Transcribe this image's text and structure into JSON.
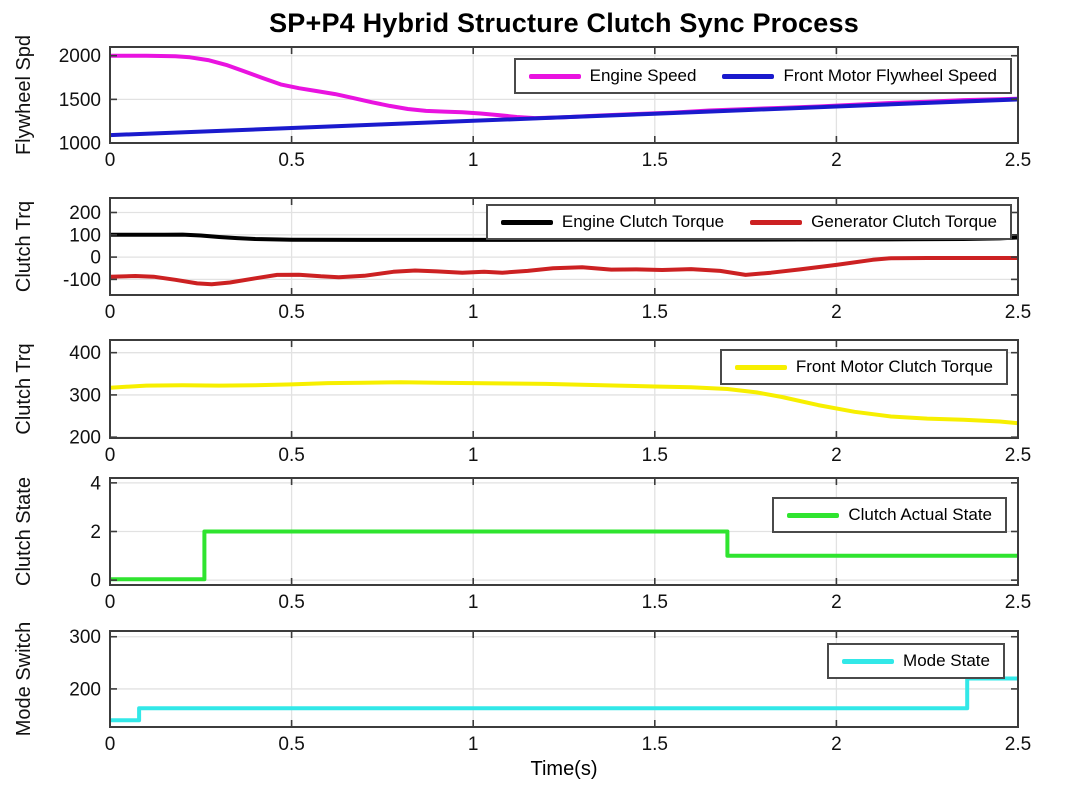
{
  "figure_title": "SP+P4 Hybrid Structure Clutch Sync Process",
  "xlabel": "Time(s)",
  "style": {
    "grid_color": "#e2e2e2",
    "axis_color": "#3c3c3c",
    "text_color": "#111111",
    "line_width": 4
  },
  "chart_data": [
    {
      "type": "line",
      "title": "SP+P4 Hybrid Structure Clutch Sync Process",
      "ylabel": "Flywheel Spd",
      "xlim": [
        0,
        2.5
      ],
      "ylim": [
        1000,
        2100
      ],
      "xticks": [
        0,
        0.5,
        1,
        1.5,
        2,
        2.5
      ],
      "xtick_labels": [
        "0",
        "0.5",
        "1",
        "1.5",
        "2",
        "2.5"
      ],
      "yticks": [
        1000,
        1500,
        2000
      ],
      "grid": true,
      "legend_position": "top-right-horizontal",
      "series": [
        {
          "name": "Engine Speed",
          "color": "#e913e0",
          "points": [
            [
              0,
              2000
            ],
            [
              0.1,
              2000
            ],
            [
              0.18,
              1995
            ],
            [
              0.22,
              1982
            ],
            [
              0.27,
              1950
            ],
            [
              0.32,
              1895
            ],
            [
              0.37,
              1820
            ],
            [
              0.42,
              1745
            ],
            [
              0.47,
              1672
            ],
            [
              0.52,
              1628
            ],
            [
              0.57,
              1595
            ],
            [
              0.62,
              1560
            ],
            [
              0.67,
              1515
            ],
            [
              0.72,
              1468
            ],
            [
              0.77,
              1425
            ],
            [
              0.82,
              1390
            ],
            [
              0.87,
              1368
            ],
            [
              0.92,
              1360
            ],
            [
              0.97,
              1352
            ],
            [
              1.02,
              1338
            ],
            [
              1.07,
              1320
            ],
            [
              1.12,
              1298
            ],
            [
              1.17,
              1285
            ],
            [
              1.25,
              1295
            ],
            [
              1.35,
              1315
            ],
            [
              1.45,
              1332
            ],
            [
              1.55,
              1348
            ],
            [
              1.65,
              1372
            ],
            [
              1.75,
              1388
            ],
            [
              1.85,
              1402
            ],
            [
              1.95,
              1418
            ],
            [
              2.05,
              1438
            ],
            [
              2.15,
              1458
            ],
            [
              2.25,
              1472
            ],
            [
              2.35,
              1492
            ],
            [
              2.45,
              1502
            ],
            [
              2.5,
              1508
            ]
          ]
        },
        {
          "name": "Front Motor Flywheel Speed",
          "color": "#1a1acd",
          "points": [
            [
              0,
              1090
            ],
            [
              0.25,
              1131
            ],
            [
              0.5,
              1172
            ],
            [
              0.75,
              1213
            ],
            [
              1,
              1254
            ],
            [
              1.25,
              1295
            ],
            [
              1.5,
              1336
            ],
            [
              1.75,
              1377
            ],
            [
              2,
              1418
            ],
            [
              2.25,
              1459
            ],
            [
              2.5,
              1500
            ]
          ]
        }
      ]
    },
    {
      "type": "line",
      "ylabel": "Clutch Trq",
      "xlim": [
        0,
        2.5
      ],
      "ylim": [
        -170,
        265
      ],
      "xticks": [
        0,
        0.5,
        1,
        1.5,
        2,
        2.5
      ],
      "xtick_labels": [
        "0",
        "0.5",
        "1",
        "1.5",
        "2",
        "2.5"
      ],
      "yticks": [
        -100,
        0,
        100,
        200
      ],
      "grid": true,
      "legend_position": "top-right-horizontal",
      "series": [
        {
          "name": "Engine Clutch Torque",
          "color": "#000000",
          "points": [
            [
              0,
              100
            ],
            [
              0.15,
              100
            ],
            [
              0.2,
              101
            ],
            [
              0.25,
              97
            ],
            [
              0.3,
              90
            ],
            [
              0.35,
              85
            ],
            [
              0.4,
              81
            ],
            [
              0.5,
              78
            ],
            [
              0.7,
              77
            ],
            [
              1,
              77
            ],
            [
              1.3,
              78
            ],
            [
              1.6,
              78
            ],
            [
              1.9,
              79
            ],
            [
              2.2,
              80
            ],
            [
              2.35,
              81
            ],
            [
              2.45,
              84
            ],
            [
              2.5,
              88
            ]
          ]
        },
        {
          "name": "Generator Clutch Torque",
          "color": "#cc2122",
          "points": [
            [
              0,
              -88
            ],
            [
              0.07,
              -85
            ],
            [
              0.12,
              -88
            ],
            [
              0.18,
              -102
            ],
            [
              0.24,
              -118
            ],
            [
              0.28,
              -122
            ],
            [
              0.33,
              -114
            ],
            [
              0.4,
              -95
            ],
            [
              0.46,
              -80
            ],
            [
              0.52,
              -79
            ],
            [
              0.58,
              -86
            ],
            [
              0.63,
              -90
            ],
            [
              0.7,
              -84
            ],
            [
              0.78,
              -66
            ],
            [
              0.84,
              -60
            ],
            [
              0.9,
              -64
            ],
            [
              0.97,
              -70
            ],
            [
              1.03,
              -66
            ],
            [
              1.08,
              -70
            ],
            [
              1.15,
              -62
            ],
            [
              1.22,
              -50
            ],
            [
              1.3,
              -46
            ],
            [
              1.38,
              -56
            ],
            [
              1.45,
              -55
            ],
            [
              1.52,
              -58
            ],
            [
              1.6,
              -54
            ],
            [
              1.68,
              -62
            ],
            [
              1.75,
              -80
            ],
            [
              1.82,
              -70
            ],
            [
              1.9,
              -55
            ],
            [
              2,
              -35
            ],
            [
              2.1,
              -12
            ],
            [
              2.15,
              -5
            ],
            [
              2.25,
              -4
            ],
            [
              2.4,
              -4
            ],
            [
              2.5,
              -4
            ]
          ]
        }
      ]
    },
    {
      "type": "line",
      "ylabel": "Clutch Trq",
      "xlim": [
        0,
        2.5
      ],
      "ylim": [
        198,
        430
      ],
      "xticks": [
        0,
        0.5,
        1,
        1.5,
        2,
        2.5
      ],
      "xtick_labels": [
        "0",
        "0.5",
        "1",
        "1.5",
        "2",
        "2.5"
      ],
      "yticks": [
        200,
        300,
        400
      ],
      "grid": true,
      "legend_position": "top-right",
      "series": [
        {
          "name": "Front Motor Clutch Torque",
          "color": "#f7ef00",
          "points": [
            [
              0,
              317
            ],
            [
              0.1,
              322
            ],
            [
              0.2,
              323
            ],
            [
              0.3,
              322
            ],
            [
              0.4,
              323
            ],
            [
              0.5,
              325
            ],
            [
              0.6,
              328
            ],
            [
              0.7,
              329
            ],
            [
              0.8,
              330
            ],
            [
              0.9,
              329
            ],
            [
              1,
              328
            ],
            [
              1.1,
              327
            ],
            [
              1.2,
              326
            ],
            [
              1.3,
              324
            ],
            [
              1.4,
              322
            ],
            [
              1.5,
              320
            ],
            [
              1.6,
              318
            ],
            [
              1.7,
              314
            ],
            [
              1.78,
              306
            ],
            [
              1.85,
              295
            ],
            [
              1.95,
              276
            ],
            [
              2.05,
              260
            ],
            [
              2.15,
              249
            ],
            [
              2.25,
              244
            ],
            [
              2.35,
              241
            ],
            [
              2.45,
              237
            ],
            [
              2.5,
              233
            ]
          ]
        }
      ]
    },
    {
      "type": "line",
      "ylabel": "Clutch State",
      "xlim": [
        0,
        2.5
      ],
      "ylim": [
        -0.2,
        4.2
      ],
      "xticks": [
        0,
        0.5,
        1,
        1.5,
        2,
        2.5
      ],
      "xtick_labels": [
        "0",
        "0.5",
        "1",
        "1.5",
        "2",
        "2.5"
      ],
      "yticks": [
        0,
        2,
        4
      ],
      "grid": true,
      "legend_position": "top-right",
      "series": [
        {
          "name": "Clutch Actual State",
          "color": "#2fe42f",
          "points": [
            [
              0,
              0.04
            ],
            [
              0.26,
              0.04
            ],
            [
              0.26,
              2
            ],
            [
              1.7,
              2
            ],
            [
              1.7,
              1
            ],
            [
              2.5,
              1
            ]
          ]
        }
      ]
    },
    {
      "type": "line",
      "ylabel": "Mode Switch",
      "xlim": [
        0,
        2.5
      ],
      "ylim": [
        127,
        311
      ],
      "xticks": [
        0,
        0.5,
        1,
        1.5,
        2,
        2.5
      ],
      "xtick_labels": [
        "0",
        "0.5",
        "1",
        "1.5",
        "2",
        "2.5"
      ],
      "yticks": [
        200,
        300
      ],
      "grid": true,
      "xlabel": "Time(s)",
      "legend_position": "top-right",
      "series": [
        {
          "name": "Mode State",
          "color": "#32e8e8",
          "points": [
            [
              0,
              140
            ],
            [
              0.08,
              140
            ],
            [
              0.08,
              163
            ],
            [
              2.36,
              163
            ],
            [
              2.36,
              220
            ],
            [
              2.5,
              220
            ]
          ]
        }
      ]
    }
  ]
}
